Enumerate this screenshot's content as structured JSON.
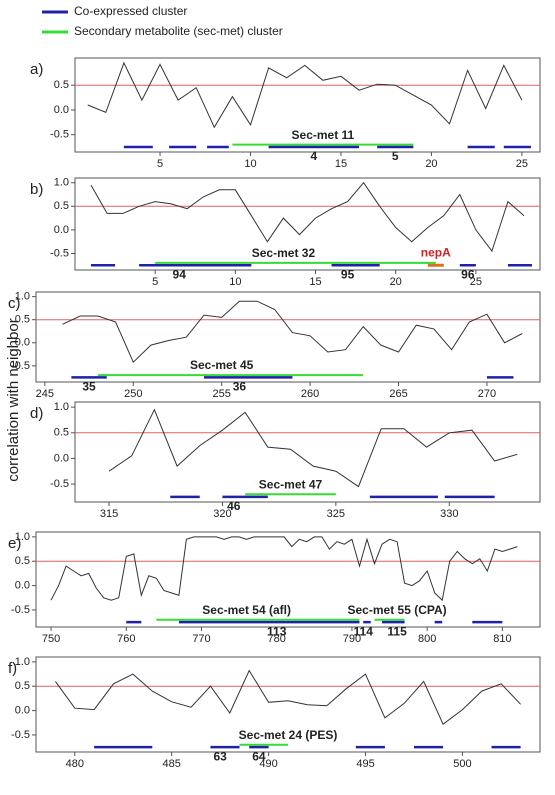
{
  "legend": [
    {
      "name": "Co-expressed cluster",
      "color": "#1f22a8"
    },
    {
      "name": "Secondary metabolite (sec-met) cluster",
      "color": "#33dd33"
    }
  ],
  "ylabel": "correlation with neighbor",
  "chart_data": [
    {
      "type": "line",
      "panel": "a)",
      "threshold": 0.5,
      "threshold_color": "#e06060",
      "color": "#333333",
      "x": [
        1,
        2,
        3,
        4,
        5,
        6,
        7,
        8,
        9,
        10,
        11,
        12,
        13,
        14,
        15,
        16,
        17,
        18,
        19,
        20,
        21,
        22,
        23,
        24,
        25
      ],
      "values": [
        0.1,
        -0.05,
        0.95,
        0.2,
        0.92,
        0.2,
        0.45,
        -0.35,
        0.27,
        -0.3,
        0.85,
        0.65,
        0.9,
        0.6,
        0.68,
        0.4,
        0.52,
        0.5,
        0.3,
        0.1,
        -0.28,
        0.8,
        0.03,
        0.9,
        0.2
      ],
      "xlim": [
        0.3,
        26
      ],
      "ylim": [
        -0.85,
        1.05
      ],
      "xticks": [
        5,
        10,
        15,
        20,
        25
      ],
      "yticks": [
        0.5,
        {
          "value": 0,
          "label": "0.0"
        },
        -0.5
      ],
      "coexpressed": [
        {
          "x": [
            3,
            4.6
          ],
          "y": -0.75
        },
        {
          "x": [
            5.5,
            7
          ],
          "y": -0.75
        },
        {
          "x": [
            7.6,
            8.8
          ],
          "y": -0.75
        },
        {
          "x": [
            11,
            16
          ],
          "y": -0.75,
          "label": "4",
          "label_x": 13.5
        },
        {
          "x": [
            17,
            19
          ],
          "y": -0.75,
          "label": "5",
          "label_x": 18
        },
        {
          "x": [
            22,
            23.5
          ],
          "y": -0.75
        },
        {
          "x": [
            24,
            25.5
          ],
          "y": -0.75
        }
      ],
      "secmet": [
        {
          "x": [
            9,
            19
          ],
          "y": -0.7,
          "label": "Sec-met 11",
          "label_x": 14
        }
      ]
    },
    {
      "type": "line",
      "panel": "b)",
      "threshold": 0.5,
      "threshold_color": "#e06060",
      "color": "#333333",
      "x": [
        1,
        2,
        3,
        4,
        5,
        6,
        7,
        8,
        9,
        10,
        11,
        12,
        13,
        14,
        15,
        16,
        17,
        18,
        19,
        20,
        21,
        22,
        23,
        24,
        25,
        26,
        27,
        28
      ],
      "values": [
        0.95,
        0.35,
        0.35,
        0.5,
        0.6,
        0.55,
        0.45,
        0.7,
        0.85,
        0.85,
        0.3,
        -0.25,
        0.25,
        -0.1,
        0.25,
        0.45,
        0.6,
        1.0,
        0.5,
        0.05,
        -0.25,
        0.05,
        0.3,
        0.75,
        0,
        -0.45,
        0.6,
        0.3
      ],
      "xlim": [
        0,
        29
      ],
      "ylim": [
        -0.85,
        1.1
      ],
      "xticks": [
        5,
        10,
        15,
        20,
        25
      ],
      "yticks": [
        {
          "value": 1,
          "label": "1.0"
        },
        0.5,
        {
          "value": 0,
          "label": "0.0"
        },
        -0.5
      ],
      "coexpressed": [
        {
          "x": [
            1,
            2.5
          ],
          "y": -0.75
        },
        {
          "x": [
            4,
            11
          ],
          "y": -0.75,
          "label": "94",
          "label_x": 6.5
        },
        {
          "x": [
            16,
            19
          ],
          "y": -0.75,
          "label": "95",
          "label_x": 17
        },
        {
          "x": [
            24,
            25
          ],
          "y": -0.75,
          "label": "96",
          "label_x": 24.5
        },
        {
          "x": [
            27,
            28.5
          ],
          "y": -0.75
        }
      ],
      "secmet": [
        {
          "x": [
            5,
            22.5
          ],
          "y": -0.7,
          "label": "Sec-met 32",
          "label_x": 13
        }
      ],
      "gene": {
        "x": [
          22,
          23
        ],
        "y": -0.75,
        "label": "nepA",
        "color": "#cc2222",
        "mark_color": "#e07020"
      }
    },
    {
      "type": "line",
      "panel": "c)",
      "threshold": 0.5,
      "threshold_color": "#e06060",
      "color": "#333333",
      "x": [
        246,
        247,
        248,
        249,
        250,
        251,
        252,
        253,
        254,
        255,
        256,
        257,
        258,
        259,
        260,
        261,
        262,
        263,
        264,
        265,
        266,
        267,
        268,
        269,
        270,
        271,
        272
      ],
      "values": [
        0.4,
        0.58,
        0.58,
        0.45,
        -0.42,
        -0.05,
        0.05,
        0.12,
        0.6,
        0.55,
        0.9,
        0.9,
        0.72,
        0.22,
        0.15,
        -0.2,
        -0.15,
        0.35,
        -0.05,
        -0.2,
        0.38,
        0.3,
        -0.15,
        0.45,
        0.62,
        0,
        0.2
      ],
      "xlim": [
        244.5,
        273
      ],
      "ylim": [
        -0.85,
        1.1
      ],
      "xticks": [
        245,
        250,
        255,
        260,
        265,
        270
      ],
      "yticks": [
        {
          "value": 1,
          "label": "1.0"
        },
        0.5,
        {
          "value": 0,
          "label": "0.0"
        },
        -0.5
      ],
      "coexpressed": [
        {
          "x": [
            246.5,
            248.5
          ],
          "y": -0.75,
          "label": "35",
          "label_x": 247.5
        },
        {
          "x": [
            254,
            259
          ],
          "y": -0.75,
          "label": "36",
          "label_x": 256
        },
        {
          "x": [
            270,
            271.5
          ],
          "y": -0.75
        }
      ],
      "secmet": [
        {
          "x": [
            248,
            263
          ],
          "y": -0.7,
          "label": "Sec-met 45",
          "label_x": 255
        }
      ]
    },
    {
      "type": "line",
      "panel": "d)",
      "threshold": 0.5,
      "threshold_color": "#e06060",
      "color": "#333333",
      "x": [
        315,
        316,
        317,
        318,
        319,
        320,
        321,
        322,
        323,
        324,
        325,
        326,
        327,
        328,
        329,
        330,
        331,
        332,
        333
      ],
      "values": [
        -0.25,
        0.05,
        0.95,
        -0.15,
        0.25,
        0.55,
        0.9,
        0.22,
        0.18,
        -0.15,
        -0.25,
        -0.55,
        0.58,
        0.58,
        0.22,
        0.5,
        0.55,
        -0.05,
        0.08
      ],
      "xlim": [
        313.5,
        334
      ],
      "ylim": [
        -0.85,
        1.1
      ],
      "xticks": [
        315,
        320,
        325,
        330
      ],
      "yticks": [
        {
          "value": 1,
          "label": "1.0"
        },
        0.5,
        {
          "value": 0,
          "label": "0.0"
        },
        -0.5
      ],
      "coexpressed": [
        {
          "x": [
            317.7,
            319
          ],
          "y": -0.75
        },
        {
          "x": [
            320,
            322
          ],
          "y": -0.75,
          "label": "46",
          "label_x": 320.5
        },
        {
          "x": [
            326.5,
            329.5
          ],
          "y": -0.75
        },
        {
          "x": [
            329.8,
            332
          ],
          "y": -0.75
        }
      ],
      "secmet": [
        {
          "x": [
            321,
            325
          ],
          "y": -0.7,
          "label": "Sec-met 47",
          "label_x": 323
        }
      ]
    },
    {
      "type": "line",
      "panel": "e)",
      "threshold": 0.5,
      "threshold_color": "#e06060",
      "color": "#333333",
      "x": [
        750,
        751,
        752,
        753,
        754,
        755,
        756,
        757,
        758,
        759,
        760,
        761,
        762,
        763,
        764,
        765,
        766,
        767,
        768,
        769,
        770,
        771,
        772,
        773,
        774,
        775,
        776,
        777,
        778,
        779,
        780,
        781,
        782,
        783,
        784,
        785,
        786,
        787,
        788,
        789,
        790,
        791,
        792,
        793,
        794,
        795,
        796,
        797,
        798,
        799,
        800,
        801,
        802,
        803,
        804,
        805,
        806,
        807,
        808,
        809,
        810,
        811,
        812
      ],
      "values": [
        -0.3,
        0,
        0.4,
        0.3,
        0.2,
        0.25,
        -0.05,
        -0.25,
        -0.3,
        -0.25,
        0.6,
        0.65,
        -0.2,
        0.2,
        0.15,
        -0.1,
        -0.15,
        -0.2,
        0.95,
        1,
        1,
        1,
        1,
        0.95,
        1,
        1,
        0.95,
        1,
        1,
        1,
        1,
        1,
        0.8,
        0.95,
        0.9,
        1,
        1,
        0.75,
        0.9,
        0.85,
        0.95,
        0.4,
        0.95,
        0.45,
        0.85,
        0.95,
        0.9,
        0.05,
        0,
        0.1,
        0.3,
        -0.15,
        -0.3,
        0.5,
        0.7,
        0.55,
        0.45,
        0.55,
        0.3,
        0.75,
        0.7,
        0.75,
        0.8
      ],
      "xlim": [
        748,
        815
      ],
      "ylim": [
        -0.85,
        1.1
      ],
      "xticks": [
        750,
        760,
        770,
        780,
        790,
        800,
        810
      ],
      "yticks": [
        {
          "value": 1,
          "label": "1.0"
        },
        0.5,
        {
          "value": 0,
          "label": "0.0"
        },
        -0.5
      ],
      "coexpressed": [
        {
          "x": [
            760,
            762
          ],
          "y": -0.75
        },
        {
          "x": [
            767,
            791
          ],
          "y": -0.75,
          "label": "113",
          "label_x": 780
        },
        {
          "x": [
            791.5,
            792.5
          ],
          "y": -0.75,
          "label": "114",
          "label_x": 791.5
        },
        {
          "x": [
            794,
            797
          ],
          "y": -0.75,
          "label": "115",
          "label_x": 796
        },
        {
          "x": [
            801,
            802
          ],
          "y": -0.75
        },
        {
          "x": [
            806,
            810
          ],
          "y": -0.75
        }
      ],
      "secmet": [
        {
          "x": [
            764,
            791
          ],
          "y": -0.7,
          "label": "Sec-met 54 (afl)",
          "label_x": 776
        },
        {
          "x": [
            793,
            797
          ],
          "y": -0.7,
          "label": "Sec-met 55 (CPA)",
          "label_x": 796
        }
      ]
    },
    {
      "type": "line",
      "panel": "f)",
      "threshold": 0.5,
      "threshold_color": "#e06060",
      "color": "#333333",
      "x": [
        479,
        480,
        481,
        482,
        483,
        484,
        485,
        486,
        487,
        488,
        489,
        490,
        491,
        492,
        493,
        494,
        495,
        496,
        497,
        498,
        499,
        500,
        501,
        502,
        503
      ],
      "values": [
        0.6,
        0.05,
        0.02,
        0.55,
        0.75,
        0.4,
        0.18,
        0.07,
        0.5,
        -0.05,
        0.82,
        0.17,
        0.2,
        0.12,
        0.1,
        0.45,
        0.75,
        -0.15,
        0.15,
        0.6,
        -0.28,
        0.02,
        0.4,
        0.55,
        0.13
      ],
      "xlim": [
        478,
        504
      ],
      "ylim": [
        -0.85,
        1.1
      ],
      "xticks": [
        480,
        485,
        490,
        495,
        500
      ],
      "yticks": [
        {
          "value": 1,
          "label": "1.0"
        },
        0.5,
        {
          "value": 0,
          "label": "0.0"
        },
        -0.5
      ],
      "coexpressed": [
        {
          "x": [
            481,
            484
          ],
          "y": -0.75
        },
        {
          "x": [
            487,
            488.5
          ],
          "y": -0.75,
          "label": "63",
          "label_x": 487.5
        },
        {
          "x": [
            489,
            490
          ],
          "y": -0.75,
          "label": "64",
          "label_x": 489.5
        },
        {
          "x": [
            494.5,
            496
          ],
          "y": -0.75
        },
        {
          "x": [
            497.5,
            499
          ],
          "y": -0.75
        },
        {
          "x": [
            501.5,
            503
          ],
          "y": -0.75
        }
      ],
      "secmet": [
        {
          "x": [
            488.5,
            491
          ],
          "y": -0.7,
          "label": "Sec-met 24 (PES)",
          "label_x": 491
        }
      ]
    }
  ]
}
